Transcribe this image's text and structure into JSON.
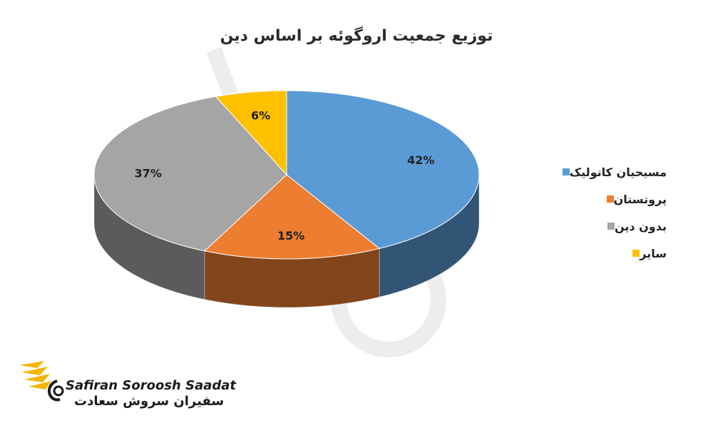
{
  "chart_data": {
    "type": "pie",
    "title": "توزیع جمعیت اروگوئه بر اساس دین",
    "categories": [
      "مسیحیان کاتولیک",
      "پروتستان",
      "بدون دین",
      "سایر"
    ],
    "values": [
      42,
      15,
      37,
      6
    ],
    "labels": [
      "42%",
      "15%",
      "37%",
      "6%"
    ],
    "colors": [
      "#5B9BD5",
      "#ED7D31",
      "#A5A5A5",
      "#FFC000"
    ],
    "legend_position": "right",
    "style": "3d"
  },
  "brand": {
    "name_en": "Safiran Soroosh Saadat",
    "name_fa": "سفیران سروش سعادت"
  }
}
